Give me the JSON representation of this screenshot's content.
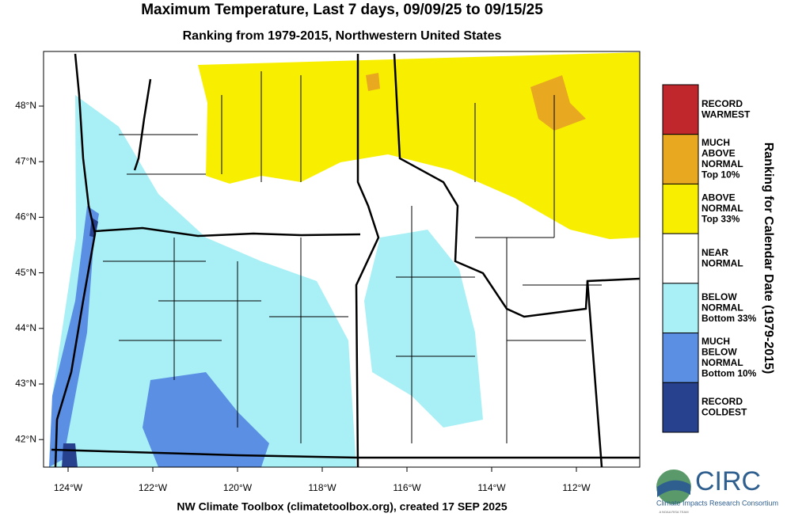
{
  "header": {
    "title": "Maximum Temperature, Last 7 days, 09/09/25 to 09/15/25",
    "subtitle": "Ranking from 1979-2015, Northwestern United States"
  },
  "map": {
    "lat_labels": [
      "48°N",
      "47°N",
      "46°N",
      "45°N",
      "44°N",
      "43°N",
      "42°N"
    ],
    "lon_labels": [
      "124°W",
      "122°W",
      "120°W",
      "118°W",
      "116°W",
      "114°W",
      "112°W"
    ]
  },
  "legend": {
    "title": "Ranking for Calendar Date (1979-2015)",
    "items": [
      {
        "color": "#c0272d",
        "lines": [
          "RECORD",
          "WARMEST"
        ]
      },
      {
        "color": "#e8a820",
        "lines": [
          "MUCH",
          "ABOVE",
          "NORMAL",
          "Top 10%"
        ]
      },
      {
        "color": "#f8ef00",
        "lines": [
          "ABOVE",
          "NORMAL",
          "Top 33%"
        ]
      },
      {
        "color": "#ffffff",
        "lines": [
          "NEAR",
          "NORMAL"
        ]
      },
      {
        "color": "#a8f0f6",
        "lines": [
          "BELOW",
          "NORMAL",
          "Bottom 33%"
        ]
      },
      {
        "color": "#5b8fe3",
        "lines": [
          "MUCH",
          "BELOW",
          "NORMAL",
          "Bottom 10%"
        ]
      },
      {
        "color": "#28418f",
        "lines": [
          "RECORD",
          "COLDEST"
        ]
      }
    ]
  },
  "footer": "NW Climate Toolbox (climatetoolbox.org), created 17 SEP 2025",
  "logo": {
    "name": "CIRC",
    "subtitle": "Climate Impacts Research Consortium",
    "tagline": "A NOAA RISA TEAM"
  }
}
